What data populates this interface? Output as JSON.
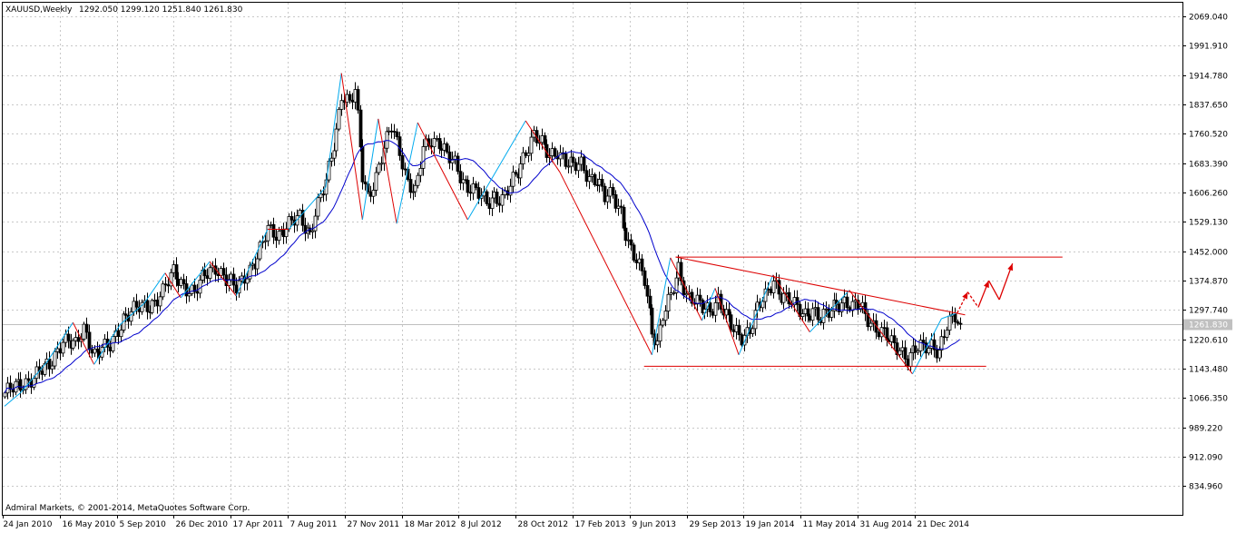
{
  "header": {
    "symbol": "XAUUSD,Weekly",
    "ohlc": "1292.050 1299.120 1251.840 1261.830"
  },
  "footer": {
    "copyright": "Admiral Markets, © 2001-2014, MetaQuotes Software Corp."
  },
  "colors": {
    "bull": "#ffffff",
    "bear": "#000000",
    "ma": "#0000cc",
    "zigzag_up": "#00aaee",
    "zigzag_down": "#dd0000",
    "trend": "#dd0000",
    "grid": "#c8c8c8",
    "price_line": "#c0c0c0"
  },
  "chart_data": {
    "type": "candlestick",
    "instrument": "XAUUSD",
    "timeframe": "Weekly",
    "ylim": [
      759.8,
      2105
    ],
    "y_ticks": [
      "2069.040",
      "1991.910",
      "1914.780",
      "1837.650",
      "1760.520",
      "1683.390",
      "1606.260",
      "1529.130",
      "1452.000",
      "1374.870",
      "1297.740",
      "1220.610",
      "1143.480",
      "1066.350",
      "989.220",
      "912.090",
      "834.960"
    ],
    "x_ticks": [
      "24 Jan 2010",
      "16 May 2010",
      "5 Sep 2010",
      "26 Dec 2010",
      "17 Apr 2011",
      "7 Aug 2011",
      "27 Nov 2011",
      "18 Mar 2012",
      "8 Jul 2012",
      "28 Oct 2012",
      "17 Feb 2013",
      "9 Jun 2013",
      "29 Sep 2013",
      "19 Jan 2014",
      "11 May 2014",
      "31 Aug 2014",
      "21 Dec 2014"
    ],
    "current_price": "1261.830",
    "close_path": [
      [
        0,
        1080
      ],
      [
        6,
        1100
      ],
      [
        12,
        1130
      ],
      [
        17,
        1150
      ],
      [
        22,
        1225
      ],
      [
        27,
        1200
      ],
      [
        30,
        1250
      ],
      [
        34,
        1185
      ],
      [
        40,
        1200
      ],
      [
        45,
        1280
      ],
      [
        50,
        1300
      ],
      [
        55,
        1310
      ],
      [
        60,
        1345
      ],
      [
        64,
        1395
      ],
      [
        68,
        1365
      ],
      [
        72,
        1340
      ],
      [
        76,
        1390
      ],
      [
        80,
        1415
      ],
      [
        84,
        1375
      ],
      [
        88,
        1355
      ],
      [
        92,
        1400
      ],
      [
        96,
        1430
      ],
      [
        100,
        1510
      ],
      [
        104,
        1500
      ],
      [
        108,
        1520
      ],
      [
        112,
        1540
      ],
      [
        116,
        1500
      ],
      [
        118,
        1555
      ],
      [
        122,
        1630
      ],
      [
        126,
        1770
      ],
      [
        128,
        1870
      ],
      [
        131,
        1840
      ],
      [
        133,
        1870
      ],
      [
        136,
        1650
      ],
      [
        138,
        1600
      ],
      [
        141,
        1650
      ],
      [
        144,
        1720
      ],
      [
        147,
        1780
      ],
      [
        150,
        1720
      ],
      [
        153,
        1635
      ],
      [
        156,
        1600
      ],
      [
        159,
        1720
      ],
      [
        162,
        1750
      ],
      [
        165,
        1740
      ],
      [
        168,
        1700
      ],
      [
        171,
        1680
      ],
      [
        174,
        1640
      ],
      [
        177,
        1620
      ],
      [
        180,
        1600
      ],
      [
        183,
        1575
      ],
      [
        186,
        1600
      ],
      [
        189,
        1590
      ],
      [
        192,
        1620
      ],
      [
        195,
        1660
      ],
      [
        198,
        1720
      ],
      [
        201,
        1760
      ],
      [
        204,
        1730
      ],
      [
        207,
        1700
      ],
      [
        210,
        1720
      ],
      [
        213,
        1690
      ],
      [
        216,
        1670
      ],
      [
        219,
        1680
      ],
      [
        222,
        1650
      ],
      [
        225,
        1640
      ],
      [
        228,
        1590
      ],
      [
        231,
        1600
      ],
      [
        234,
        1560
      ],
      [
        237,
        1470
      ],
      [
        240,
        1420
      ],
      [
        243,
        1380
      ],
      [
        246,
        1250
      ],
      [
        248,
        1210
      ],
      [
        250,
        1280
      ],
      [
        253,
        1330
      ],
      [
        256,
        1410
      ],
      [
        259,
        1340
      ],
      [
        262,
        1320
      ],
      [
        265,
        1300
      ],
      [
        268,
        1300
      ],
      [
        271,
        1330
      ],
      [
        274,
        1280
      ],
      [
        277,
        1240
      ],
      [
        280,
        1230
      ],
      [
        283,
        1250
      ],
      [
        286,
        1300
      ],
      [
        289,
        1330
      ],
      [
        292,
        1380
      ],
      [
        295,
        1340
      ],
      [
        298,
        1320
      ],
      [
        301,
        1300
      ],
      [
        304,
        1290
      ],
      [
        307,
        1300
      ],
      [
        310,
        1270
      ],
      [
        313,
        1290
      ],
      [
        316,
        1320
      ],
      [
        319,
        1320
      ],
      [
        322,
        1300
      ],
      [
        325,
        1310
      ],
      [
        328,
        1280
      ],
      [
        331,
        1250
      ],
      [
        334,
        1230
      ],
      [
        337,
        1210
      ],
      [
        340,
        1200
      ],
      [
        343,
        1170
      ],
      [
        346,
        1190
      ],
      [
        349,
        1200
      ],
      [
        352,
        1210
      ],
      [
        355,
        1190
      ],
      [
        358,
        1250
      ],
      [
        361,
        1280
      ],
      [
        363,
        1261.83
      ]
    ],
    "extremes": [
      [
        0,
        1045
      ],
      [
        6,
        1080
      ],
      [
        16,
        1160
      ],
      [
        26,
        1265
      ],
      [
        34,
        1155
      ],
      [
        44,
        1260
      ],
      [
        53,
        1315
      ],
      [
        61,
        1395
      ],
      [
        67,
        1330
      ],
      [
        78,
        1425
      ],
      [
        88,
        1335
      ],
      [
        100,
        1510
      ],
      [
        108,
        1510
      ],
      [
        122,
        1620
      ],
      [
        128,
        1920
      ],
      [
        136,
        1535
      ],
      [
        142,
        1800
      ],
      [
        149,
        1525
      ],
      [
        157,
        1790
      ],
      [
        164,
        1695
      ],
      [
        176,
        1535
      ],
      [
        198,
        1795
      ],
      [
        211,
        1660
      ],
      [
        246,
        1180
      ],
      [
        253,
        1435
      ],
      [
        265,
        1270
      ],
      [
        270,
        1355
      ],
      [
        279,
        1180
      ],
      [
        292,
        1390
      ],
      [
        306,
        1240
      ],
      [
        321,
        1350
      ],
      [
        345,
        1130
      ],
      [
        356,
        1275
      ],
      [
        362,
        1290
      ]
    ],
    "support_line": [
      [
        243,
        1150
      ],
      [
        373,
        1150
      ]
    ],
    "resistance_line": [
      [
        255,
        1437
      ],
      [
        402,
        1437
      ]
    ],
    "descending_trendline": [
      [
        255,
        1437
      ],
      [
        365,
        1285
      ]
    ],
    "projection_arrows": [
      [
        362,
        1290
      ],
      [
        366,
        1345
      ],
      [
        370,
        1305
      ],
      [
        374,
        1375
      ],
      [
        378,
        1325
      ],
      [
        383,
        1420
      ]
    ]
  }
}
